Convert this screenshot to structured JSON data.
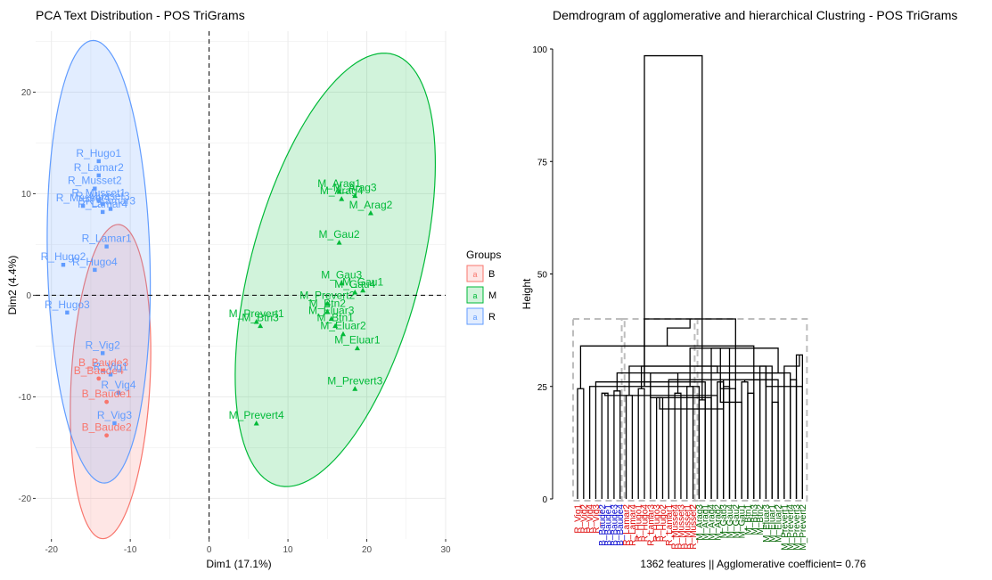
{
  "pca": {
    "title": "PCA Text Distribution - POS TriGrams",
    "xlabel": "Dim1 (17.1%)",
    "ylabel": "Dim2 (4.4%)",
    "xticks": [
      -20,
      -10,
      0,
      10,
      20,
      30
    ],
    "yticks": [
      -20,
      -10,
      0,
      10,
      20
    ],
    "legend_title": "Groups"
  },
  "dendro": {
    "title": "Demdrogram of agglomerative and hierarchical Clustring - POS TriGrams",
    "ylabel": "Height",
    "yticks": [
      0,
      25,
      50,
      75,
      100
    ],
    "caption": "1362 features || Agglomerative coefficient= 0.76"
  },
  "colors": {
    "B": "#F8766D",
    "M": "#00BA38",
    "R": "#619CFF",
    "B_dendro": "#0000CC",
    "R_dendro": "#DD0000",
    "M_dendro": "#006400"
  },
  "chart_data": [
    {
      "type": "scatter",
      "title": "PCA Text Distribution - POS TriGrams",
      "xlabel": "Dim1 (17.1%)",
      "ylabel": "Dim2 (4.4%)",
      "xlim": [
        -22,
        30
      ],
      "ylim": [
        -24,
        26
      ],
      "grid": true,
      "legend_placement": "right",
      "series": [
        {
          "name": "B",
          "color": "#F8766D",
          "ellipse": {
            "cx": -12.5,
            "cy": -8.5,
            "rx": 5.0,
            "ry": 15.5,
            "angle_deg": 86
          },
          "points": [
            {
              "label": "B_Baude1",
              "x": -13,
              "y": -10.5
            },
            {
              "label": "B_Baude2",
              "x": -13,
              "y": -13.8
            },
            {
              "label": "B_Baude3",
              "x": -13.4,
              "y": -7.4
            },
            {
              "label": "B_Baude4",
              "x": -14,
              "y": -8.2
            }
          ]
        },
        {
          "name": "M",
          "color": "#00BA38",
          "ellipse": {
            "cx": 16.0,
            "cy": 2.5,
            "rx": 10.5,
            "ry": 22.5,
            "angle_deg": 69
          },
          "points": [
            {
              "label": "M_Arag1",
              "x": 16.5,
              "y": 10.2
            },
            {
              "label": "M_Arag2",
              "x": 20.5,
              "y": 8.1
            },
            {
              "label": "M_Arag3",
              "x": 18.5,
              "y": 9.8
            },
            {
              "label": "M_Arag4",
              "x": 16.8,
              "y": 9.5
            },
            {
              "label": "M_Gau1",
              "x": 19.5,
              "y": 0.5
            },
            {
              "label": "M_Gau2",
              "x": 16.5,
              "y": 5.2
            },
            {
              "label": "M_Gau3",
              "x": 16.8,
              "y": 1.2
            },
            {
              "label": "M_Gau4",
              "x": 18.5,
              "y": 0.3
            },
            {
              "label": "M_Prevert1",
              "x": 6.0,
              "y": -2.6
            },
            {
              "label": "M_Prevert2",
              "x": 15.0,
              "y": -0.8
            },
            {
              "label": "M_Prevert3",
              "x": 18.5,
              "y": -9.2
            },
            {
              "label": "M_Prevert4",
              "x": 6.0,
              "y": -12.6
            },
            {
              "label": "M_Btn1",
              "x": 16.0,
              "y": -3.0
            },
            {
              "label": "M_Btn2",
              "x": 15.0,
              "y": -1.6
            },
            {
              "label": "M_Btn3",
              "x": 6.5,
              "y": -3.0
            },
            {
              "label": "M_Eluar1",
              "x": 18.8,
              "y": -5.2
            },
            {
              "label": "M_Eluar2",
              "x": 17.0,
              "y": -3.8
            },
            {
              "label": "M_Eluar3",
              "x": 15.5,
              "y": -2.3
            }
          ]
        },
        {
          "name": "R",
          "color": "#619CFF",
          "ellipse": {
            "cx": -14.0,
            "cy": 3.3,
            "rx": 6.5,
            "ry": 21.8,
            "angle_deg": 92
          },
          "points": [
            {
              "label": "R_Hugo1",
              "x": -14.0,
              "y": 13.2
            },
            {
              "label": "R_Hugo2",
              "x": -18.5,
              "y": 3.0
            },
            {
              "label": "R_Hugo3",
              "x": -18.0,
              "y": -1.7
            },
            {
              "label": "R_Hugo4",
              "x": -14.5,
              "y": 2.5
            },
            {
              "label": "R_Lamar1",
              "x": -13.0,
              "y": 4.8
            },
            {
              "label": "R_Lamar2",
              "x": -14.0,
              "y": 11.8
            },
            {
              "label": "R_Lamar3",
              "x": -12.5,
              "y": 8.5
            },
            {
              "label": "R_Lamar4",
              "x": -13.5,
              "y": 8.2
            },
            {
              "label": "R_Musset1",
              "x": -14.0,
              "y": 9.3
            },
            {
              "label": "R_Musset2",
              "x": -14.5,
              "y": 10.5
            },
            {
              "label": "R_Musset3",
              "x": -13.5,
              "y": 9.0
            },
            {
              "label": "R_Musset4",
              "x": -16.0,
              "y": 8.8
            },
            {
              "label": "R_Vig1",
              "x": -12.5,
              "y": -7.8
            },
            {
              "label": "R_Vig2",
              "x": -13.5,
              "y": -5.7
            },
            {
              "label": "R_Vig3",
              "x": -12.0,
              "y": -12.6
            },
            {
              "label": "R_Vig4",
              "x": -11.5,
              "y": -9.6
            }
          ]
        }
      ]
    },
    {
      "type": "dendrogram",
      "title": "Demdrogram of agglomerative and hierarchical Clustring - POS TriGrams",
      "ylabel": "Height",
      "ylim": [
        0,
        100
      ],
      "leaves": [
        {
          "label": "R_Vig1",
          "group": "R"
        },
        {
          "label": "R_Vig2",
          "group": "R"
        },
        {
          "label": "R_Vig4",
          "group": "R"
        },
        {
          "label": "R_Vig3",
          "group": "R"
        },
        {
          "label": "B_Baude2",
          "group": "B"
        },
        {
          "label": "B_Baude1",
          "group": "B"
        },
        {
          "label": "B_Baude3",
          "group": "B"
        },
        {
          "label": "B_Baude4",
          "group": "B"
        },
        {
          "label": "R_Lamar2",
          "group": "R"
        },
        {
          "label": "R_Lamar4",
          "group": "R"
        },
        {
          "label": "R_Hugo1",
          "group": "R"
        },
        {
          "label": "R_Hugo4",
          "group": "R"
        },
        {
          "label": "R_Lamar3",
          "group": "R"
        },
        {
          "label": "R_Hugo3",
          "group": "R"
        },
        {
          "label": "R_Hugo2",
          "group": "R"
        },
        {
          "label": "R_Lamar1",
          "group": "R"
        },
        {
          "label": "R_Musset4",
          "group": "R"
        },
        {
          "label": "R_Musset3",
          "group": "R"
        },
        {
          "label": "R_Musset1",
          "group": "R"
        },
        {
          "label": "R_Musset2",
          "group": "R"
        },
        {
          "label": "M_Arag3",
          "group": "M"
        },
        {
          "label": "M_Arag1",
          "group": "M"
        },
        {
          "label": "M_Arag4",
          "group": "M"
        },
        {
          "label": "M_Arag2",
          "group": "M"
        },
        {
          "label": "M_Gau3",
          "group": "M"
        },
        {
          "label": "M_Gau4",
          "group": "M"
        },
        {
          "label": "M_Gau2",
          "group": "M"
        },
        {
          "label": "M_Gau1",
          "group": "M"
        },
        {
          "label": "M_Btn1",
          "group": "M"
        },
        {
          "label": "M_Btn3",
          "group": "M"
        },
        {
          "label": "M_Btn2",
          "group": "M"
        },
        {
          "label": "M_Eluar3",
          "group": "M"
        },
        {
          "label": "M_Eluar1",
          "group": "M"
        },
        {
          "label": "M_Eluar2",
          "group": "M"
        },
        {
          "label": "M_Prevert1",
          "group": "M"
        },
        {
          "label": "M_Prevert4",
          "group": "M"
        },
        {
          "label": "M_Prevert3",
          "group": "M"
        },
        {
          "label": "M_Prevert2",
          "group": "M"
        }
      ],
      "merges": [
        [
          0,
          1,
          24.5
        ],
        [
          20,
          2,
          25
        ],
        [
          21,
          3,
          26
        ],
        [
          4,
          5,
          23.5
        ],
        [
          6,
          7,
          24
        ],
        [
          23,
          24,
          26
        ],
        [
          22,
          25,
          33.5
        ],
        [
          16,
          17,
          23.5
        ],
        [
          18,
          19,
          25
        ],
        [
          27,
          28,
          26
        ],
        [
          8,
          9,
          23
        ],
        [
          10,
          11,
          24.5
        ],
        [
          13,
          14,
          22.5
        ],
        [
          33,
          15,
          26.5
        ],
        [
          12,
          34,
          28
        ],
        [
          31,
          35,
          28
        ],
        [
          32,
          30,
          29.5
        ],
        [
          36,
          37,
          32
        ],
        [
          29,
          38,
          34
        ],
        [
          26,
          39,
          40
        ],
        [
          20,
          21,
          22
        ],
        [
          40,
          22,
          22.5
        ],
        [
          41,
          23,
          23
        ],
        [
          24,
          25,
          25
        ],
        [
          43,
          26,
          24.5
        ],
        [
          44,
          27,
          21.5
        ],
        [
          42,
          45,
          28
        ],
        [
          28,
          29,
          23.5
        ],
        [
          47,
          30,
          26.5
        ],
        [
          48,
          31,
          29.5
        ],
        [
          32,
          33,
          21.5
        ],
        [
          50,
          51,
          20
        ],
        [
          49,
          52,
          29.5
        ],
        [
          35,
          36,
          26.5
        ],
        [
          37,
          54,
          25
        ],
        [
          55,
          34,
          29.5
        ],
        [
          46,
          53,
          33.5
        ],
        [
          56,
          57,
          38
        ],
        [
          39,
          58,
          98.5
        ]
      ],
      "cut_height": 40,
      "clusters": [
        [
          0,
          7
        ],
        [
          8,
          19
        ],
        [
          20,
          37
        ]
      ],
      "caption": "1362 features || Agglomerative coefficient= 0.76"
    }
  ]
}
